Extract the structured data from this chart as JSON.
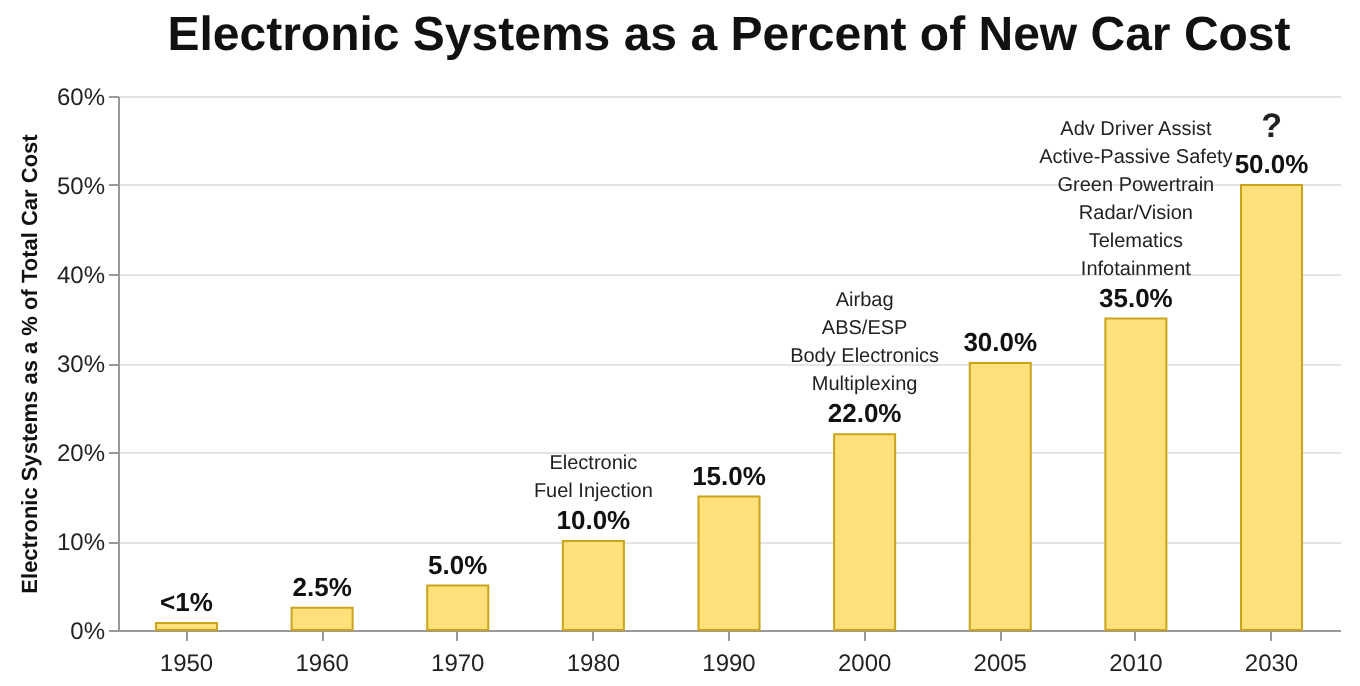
{
  "chart_data": {
    "type": "bar",
    "title": "Electronic Systems as a Percent of New Car Cost",
    "ylabel": "Electronic Systems as a % of Total Car Cost",
    "categories": [
      "1950",
      "1960",
      "1970",
      "1980",
      "1990",
      "2000",
      "2005",
      "2010",
      "2030"
    ],
    "values": [
      0.8,
      2.5,
      5,
      10,
      15,
      22,
      30,
      35,
      50
    ],
    "value_labels": [
      "<1%",
      "2.5%",
      "5.0%",
      "10.0%",
      "15.0%",
      "22.0%",
      "30.0%",
      "35.0%",
      "50.0%"
    ],
    "color": "#ffe07a",
    "ylim": [
      0,
      60
    ],
    "yticks": [
      {
        "value": 0,
        "label": "0%"
      },
      {
        "value": 10,
        "label": "10%"
      },
      {
        "value": 20,
        "label": "20%"
      },
      {
        "value": 30,
        "label": "30%"
      },
      {
        "value": 40,
        "label": "40%"
      },
      {
        "value": 50,
        "label": "50%"
      },
      {
        "value": 60,
        "label": "60%"
      }
    ],
    "grid": "y",
    "annotations": [
      {
        "text": "Electronic\nFuel Injection",
        "x": "1980",
        "y": 10
      },
      {
        "text": "Airbag\nABS/ESP\nBody Electronics\nMultiplexing",
        "x": "2000",
        "y": 22
      },
      {
        "text": "Adv Driver Assist\nActive-Passive Safety\nGreen Powertrain\nRadar/Vision\nTelematics\nInfotainment",
        "x": "2010",
        "y": 35
      },
      {
        "text": "?",
        "x": "2030",
        "y": 50
      }
    ]
  }
}
